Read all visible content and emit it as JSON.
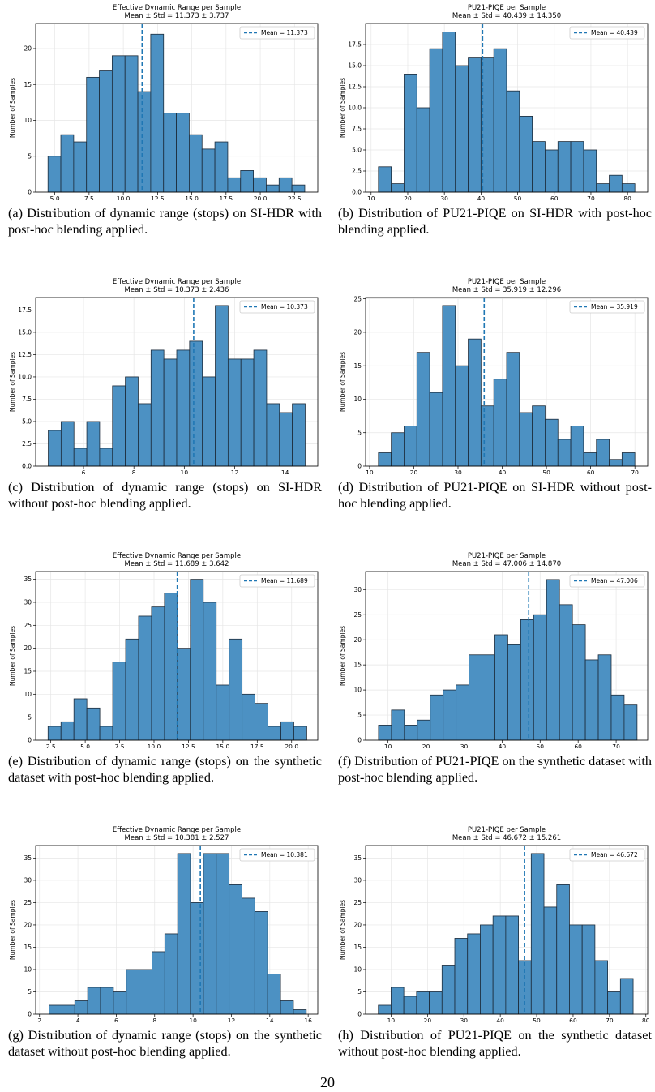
{
  "page_number": "20",
  "figures": [
    {
      "caption": "(a) Distribution of dynamic range (stops) on SI-HDR with post-hoc blending applied.",
      "chart_data": {
        "type": "bar",
        "title": "Effective Dynamic Range per Sample",
        "subtitle": "Mean ± Std = 11.373 ± 3.737",
        "xlabel": "Dynamic Range (stops)",
        "ylabel": "Number of Samples",
        "legend": "Mean = 11.373",
        "legend_position": "top-right",
        "grid": true,
        "mean": 11.373,
        "bin_start": 4.5,
        "bin_width": 0.9375,
        "values": [
          5,
          8,
          7,
          16,
          17,
          19,
          19,
          14,
          22,
          11,
          11,
          8,
          6,
          7,
          2,
          3,
          2,
          1,
          2,
          1
        ],
        "xlim": [
          3.6,
          24.2
        ],
        "ylim": [
          0,
          23.5
        ],
        "xticks": [
          5.0,
          7.5,
          10.0,
          12.5,
          15.0,
          17.5,
          20.0,
          22.5
        ],
        "xtick_labels": [
          "5.0",
          "7.5",
          "10.0",
          "12.5",
          "15.0",
          "17.5",
          "20.0",
          "22.5"
        ],
        "yticks": [
          0,
          5,
          10,
          15,
          20
        ],
        "ytick_labels": [
          "0",
          "5",
          "10",
          "15",
          "20"
        ],
        "bar_color": "#4c91c3",
        "mean_color": "#1f77b4"
      }
    },
    {
      "caption": "(b) Distribution of PU21-PIQE on SI-HDR with post-hoc blending applied.",
      "chart_data": {
        "type": "bar",
        "title": "PU21-PIQE per Sample",
        "subtitle": "Mean ± Std = 40.439 ± 14.350",
        "xlabel": "PU21-PIQE",
        "ylabel": "Number of Samples",
        "legend": "Mean = 40.439",
        "legend_position": "top-right",
        "grid": true,
        "mean": 40.439,
        "bin_start": 12,
        "bin_width": 3.5,
        "values": [
          3,
          1,
          14,
          10,
          17,
          19,
          15,
          16,
          16,
          17,
          12,
          9,
          6,
          5,
          6,
          6,
          5,
          1,
          2,
          1
        ],
        "xlim": [
          8.5,
          85.5
        ],
        "ylim": [
          0,
          20
        ],
        "xticks": [
          10,
          20,
          30,
          40,
          50,
          60,
          70,
          80
        ],
        "xtick_labels": [
          "10",
          "20",
          "30",
          "40",
          "50",
          "60",
          "70",
          "80"
        ],
        "yticks": [
          0,
          2.5,
          5,
          7.5,
          10,
          12.5,
          15,
          17.5
        ],
        "ytick_labels": [
          "0.0",
          "2.5",
          "5.0",
          "7.5",
          "10.0",
          "12.5",
          "15.0",
          "17.5"
        ],
        "bar_color": "#4c91c3",
        "mean_color": "#1f77b4"
      }
    },
    {
      "caption": "(c) Distribution of dynamic range (stops) on SI-HDR without post-hoc blending applied.",
      "chart_data": {
        "type": "bar",
        "title": "Effective Dynamic Range per Sample",
        "subtitle": "Mean ± Std = 10.373 ± 2.436",
        "xlabel": "Dynamic Range (stops)",
        "ylabel": "Number of Samples",
        "legend": "Mean = 10.373",
        "legend_position": "top-right",
        "grid": true,
        "mean": 10.373,
        "bin_start": 4.6,
        "bin_width": 0.51,
        "values": [
          4,
          5,
          2,
          5,
          2,
          9,
          10,
          7,
          13,
          12,
          13,
          14,
          10,
          18,
          12,
          12,
          13,
          7,
          6,
          7
        ],
        "xlim": [
          4.1,
          15.3
        ],
        "ylim": [
          0,
          18.9
        ],
        "xticks": [
          6,
          8,
          10,
          12,
          14
        ],
        "xtick_labels": [
          "6",
          "8",
          "10",
          "12",
          "14"
        ],
        "yticks": [
          0,
          2.5,
          5,
          7.5,
          10,
          12.5,
          15,
          17.5
        ],
        "ytick_labels": [
          "0.0",
          "2.5",
          "5.0",
          "7.5",
          "10.0",
          "12.5",
          "15.0",
          "17.5"
        ],
        "bar_color": "#4c91c3",
        "mean_color": "#1f77b4"
      }
    },
    {
      "caption": "(d) Distribution of PU21-PIQE on SI-HDR without post-hoc blending applied.",
      "chart_data": {
        "type": "bar",
        "title": "PU21-PIQE per Sample",
        "subtitle": "Mean ± Std = 35.919 ± 12.296",
        "xlabel": "PU21-PIQE",
        "ylabel": "Number of Samples",
        "legend": "Mean = 35.919",
        "legend_position": "top-right",
        "grid": true,
        "mean": 35.919,
        "bin_start": 12,
        "bin_width": 2.9,
        "values": [
          2,
          5,
          6,
          17,
          11,
          24,
          15,
          19,
          9,
          13,
          17,
          8,
          9,
          7,
          4,
          6,
          2,
          4,
          1,
          2
        ],
        "xlim": [
          9.1,
          72.9
        ],
        "ylim": [
          0,
          25.2
        ],
        "xticks": [
          10,
          20,
          30,
          40,
          50,
          60,
          70
        ],
        "xtick_labels": [
          "10",
          "20",
          "30",
          "40",
          "50",
          "60",
          "70"
        ],
        "yticks": [
          0,
          5,
          10,
          15,
          20,
          25
        ],
        "ytick_labels": [
          "0",
          "5",
          "10",
          "15",
          "20",
          "25"
        ],
        "bar_color": "#4c91c3",
        "mean_color": "#1f77b4"
      }
    },
    {
      "caption": "(e) Distribution of dynamic range (stops) on the synthetic dataset with post-hoc blending applied.",
      "chart_data": {
        "type": "bar",
        "title": "Effective Dynamic Range per Sample",
        "subtitle": "Mean ± Std = 11.689 ± 3.642",
        "xlabel": "Dynamic Range (stops)",
        "ylabel": "Number of Samples",
        "legend": "Mean = 11.689",
        "legend_position": "top-right",
        "grid": true,
        "mean": 11.689,
        "bin_start": 2.3,
        "bin_width": 0.94,
        "values": [
          3,
          4,
          9,
          7,
          3,
          17,
          22,
          27,
          29,
          32,
          20,
          35,
          30,
          12,
          22,
          10,
          8,
          3,
          4,
          3
        ],
        "xlim": [
          1.4,
          21.9
        ],
        "ylim": [
          0,
          36.7
        ],
        "xticks": [
          2.5,
          5.0,
          7.5,
          10.0,
          12.5,
          15.0,
          17.5,
          20.0
        ],
        "xtick_labels": [
          "2.5",
          "5.0",
          "7.5",
          "10.0",
          "12.5",
          "15.0",
          "17.5",
          "20.0"
        ],
        "yticks": [
          0,
          5,
          10,
          15,
          20,
          25,
          30,
          35
        ],
        "ytick_labels": [
          "0",
          "5",
          "10",
          "15",
          "20",
          "25",
          "30",
          "35"
        ],
        "bar_color": "#4c91c3",
        "mean_color": "#1f77b4"
      }
    },
    {
      "caption": "(f) Distribution of PU21-PIQE on the synthetic dataset with post-hoc blending applied.",
      "chart_data": {
        "type": "bar",
        "title": "PU21-PIQE per Sample",
        "subtitle": "Mean ± Std = 47.006 ± 14.870",
        "xlabel": "PU21-PIQE",
        "ylabel": "Number of Samples",
        "legend": "Mean = 47.006",
        "legend_position": "top-right",
        "grid": true,
        "mean": 47.006,
        "bin_start": 7.5,
        "bin_width": 3.4,
        "values": [
          3,
          6,
          3,
          4,
          9,
          10,
          11,
          17,
          17,
          21,
          19,
          24,
          25,
          32,
          27,
          23,
          16,
          17,
          9,
          7
        ],
        "xlim": [
          4.1,
          78.3
        ],
        "ylim": [
          0,
          33.6
        ],
        "xticks": [
          10,
          20,
          30,
          40,
          50,
          60,
          70
        ],
        "xtick_labels": [
          "10",
          "20",
          "30",
          "40",
          "50",
          "60",
          "70"
        ],
        "yticks": [
          0,
          5,
          10,
          15,
          20,
          25,
          30
        ],
        "ytick_labels": [
          "0",
          "5",
          "10",
          "15",
          "20",
          "25",
          "30"
        ],
        "bar_color": "#4c91c3",
        "mean_color": "#1f77b4"
      }
    },
    {
      "caption": "(g) Distribution of dynamic range (stops) on the synthetic dataset without post-hoc blending applied.",
      "chart_data": {
        "type": "bar",
        "title": "Effective Dynamic Range per Sample",
        "subtitle": "Mean ± Std = 10.381 ± 2.527",
        "xlabel": "Dynamic Range (stops)",
        "ylabel": "Number of Samples",
        "legend": "Mean = 10.381",
        "legend_position": "top-right",
        "grid": true,
        "mean": 10.381,
        "bin_start": 2.5,
        "bin_width": 0.67,
        "values": [
          2,
          2,
          3,
          6,
          6,
          5,
          10,
          10,
          14,
          18,
          36,
          25,
          36,
          36,
          29,
          26,
          23,
          9,
          3,
          1
        ],
        "xlim": [
          1.8,
          16.5
        ],
        "ylim": [
          0,
          37.8
        ],
        "xticks": [
          2,
          4,
          6,
          8,
          10,
          12,
          14,
          16
        ],
        "xtick_labels": [
          "2",
          "4",
          "6",
          "8",
          "10",
          "12",
          "14",
          "16"
        ],
        "yticks": [
          0,
          5,
          10,
          15,
          20,
          25,
          30,
          35
        ],
        "ytick_labels": [
          "0",
          "5",
          "10",
          "15",
          "20",
          "25",
          "30",
          "35"
        ],
        "bar_color": "#4c91c3",
        "mean_color": "#1f77b4"
      }
    },
    {
      "caption": "(h) Distribution of PU21-PIQE on the synthetic dataset without post-hoc blending applied.",
      "chart_data": {
        "type": "bar",
        "title": "PU21-PIQE per Sample",
        "subtitle": "Mean ± Std = 46.672 ± 15.261",
        "xlabel": "PU21-PIQE",
        "ylabel": "Number of Samples",
        "legend": "Mean = 46.672",
        "legend_position": "top-right",
        "grid": true,
        "mean": 46.672,
        "bin_start": 6.5,
        "bin_width": 3.5,
        "values": [
          2,
          6,
          4,
          5,
          5,
          11,
          17,
          18,
          20,
          22,
          22,
          12,
          36,
          24,
          29,
          20,
          20,
          12,
          5,
          8
        ],
        "xlim": [
          3.0,
          80.5
        ],
        "ylim": [
          0,
          37.8
        ],
        "xticks": [
          10,
          20,
          30,
          40,
          50,
          60,
          70,
          80
        ],
        "xtick_labels": [
          "10",
          "20",
          "30",
          "40",
          "50",
          "60",
          "70",
          "80"
        ],
        "yticks": [
          0,
          5,
          10,
          15,
          20,
          25,
          30,
          35
        ],
        "ytick_labels": [
          "0",
          "5",
          "10",
          "15",
          "20",
          "25",
          "30",
          "35"
        ],
        "bar_color": "#4c91c3",
        "mean_color": "#1f77b4"
      }
    }
  ]
}
